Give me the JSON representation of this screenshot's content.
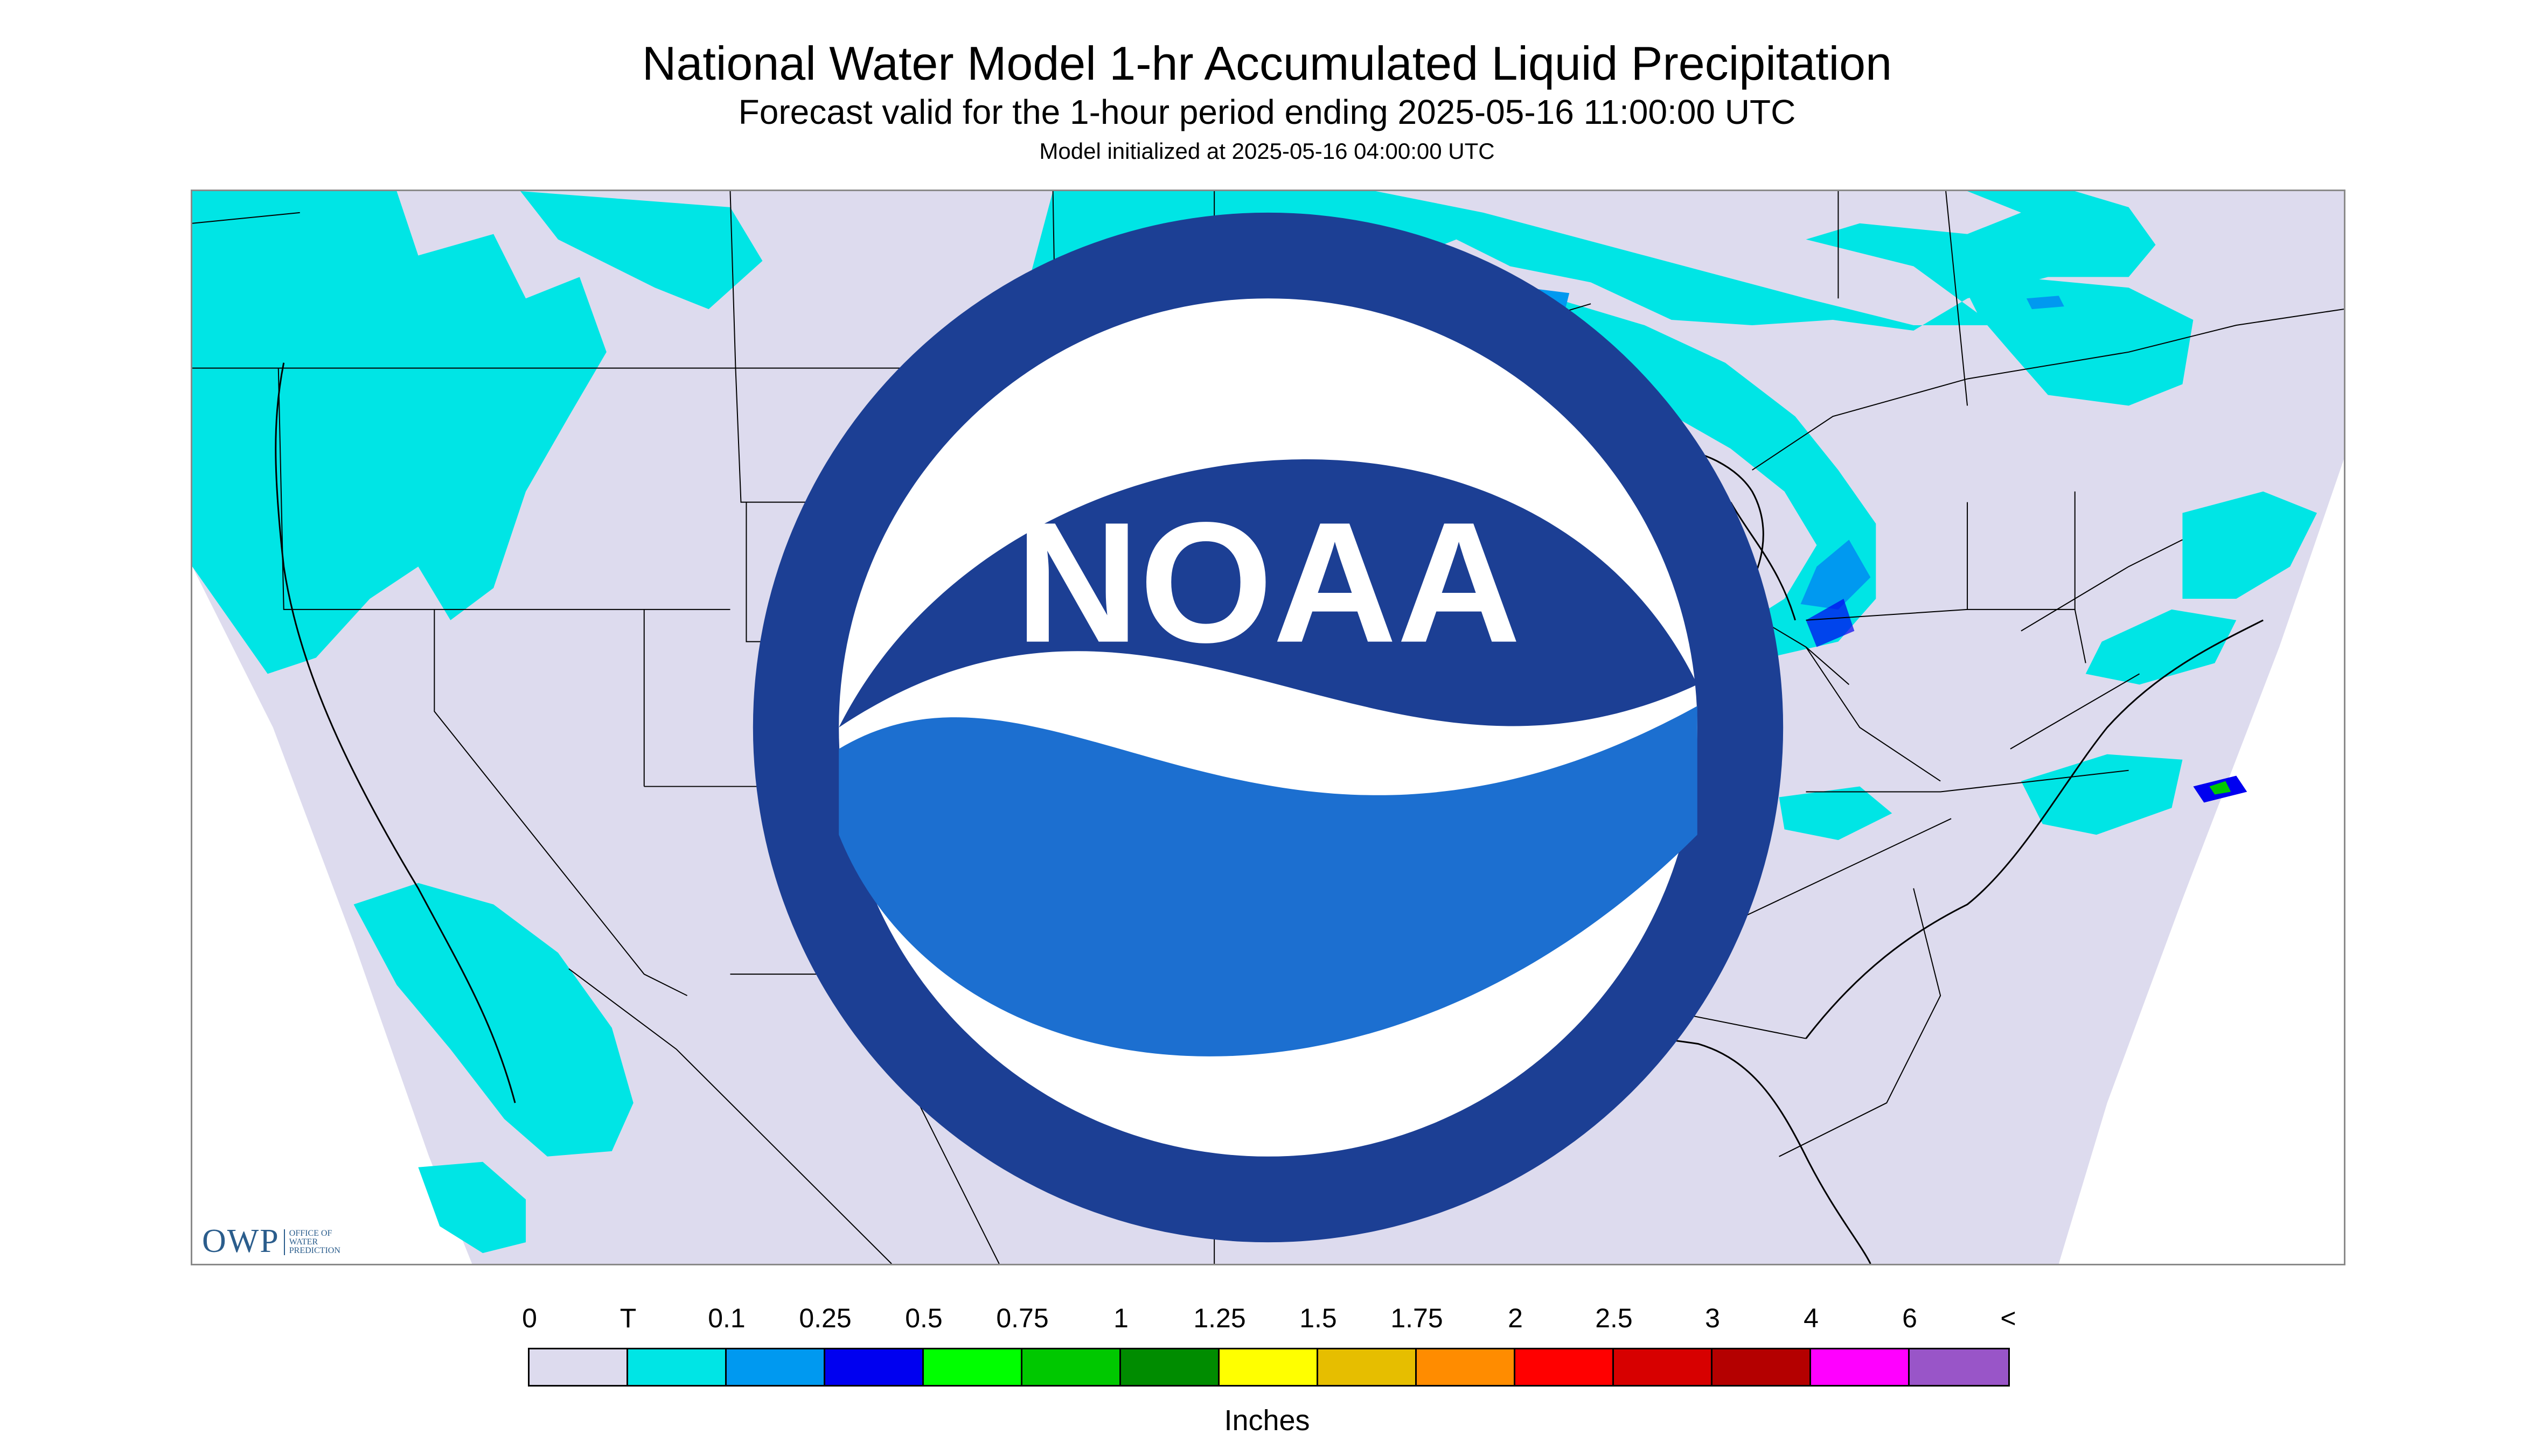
{
  "title": "National Water Model 1-hr Accumulated Liquid Precipitation",
  "subtitle": "Forecast valid for the 1-hour period ending 2025-05-16 11:00:00 UTC",
  "init_line": "Model initialized at 2025-05-16 04:00:00 UTC",
  "map": {
    "region": "Contiguous United States",
    "background_color": "#dddbee",
    "outside_domain_color": "#ffffff",
    "boundary_color": "#000000"
  },
  "logos": {
    "owp_mark": "OWP",
    "owp_text": "OFFICE OF\nWATER\nPREDICTION",
    "noaa_text": "NOAA"
  },
  "legend": {
    "labels": [
      "0",
      "T",
      "0.1",
      "0.25",
      "0.5",
      "0.75",
      "1",
      "1.25",
      "1.5",
      "1.75",
      "2",
      "2.5",
      "3",
      "4",
      "6",
      "<"
    ],
    "colors": [
      "#dddbee",
      "#00e5e5",
      "#0099f0",
      "#0000f0",
      "#00ff00",
      "#00c800",
      "#008c00",
      "#ffff00",
      "#e6be00",
      "#ff8c00",
      "#ff0000",
      "#d70000",
      "#b40000",
      "#ff00ff",
      "#9955c8"
    ],
    "units": "Inches"
  }
}
